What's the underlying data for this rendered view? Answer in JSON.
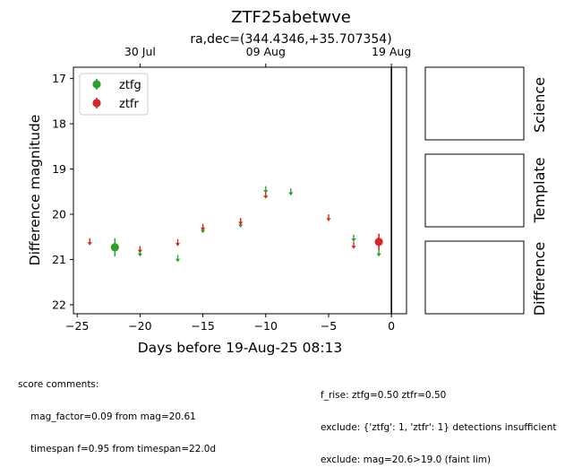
{
  "chart_data": {
    "type": "scatter",
    "title": "ZTF25abetwve",
    "subtitle": "ra,dec=(344.4346,+35.707354)",
    "xlabel": "Days before 19-Aug-25 08:13",
    "ylabel": "Difference magnitude",
    "xlim": [
      -25.3,
      1.2
    ],
    "ylim": [
      22.2,
      16.75
    ],
    "y_inverted": true,
    "xticks": [
      -25,
      -20,
      -15,
      -10,
      -5,
      0
    ],
    "xtick_labels": [
      "−25",
      "−20",
      "−15",
      "−10",
      "−5",
      "0"
    ],
    "yticks": [
      17,
      18,
      19,
      20,
      21,
      22
    ],
    "ytick_labels": [
      "17",
      "18",
      "19",
      "20",
      "21",
      "22"
    ],
    "top_axis": {
      "ticks": [
        -20,
        -10,
        0
      ],
      "labels": [
        "30 Jul",
        "09 Aug",
        "19 Aug"
      ]
    },
    "vline_x": 0,
    "grid": false,
    "legend": {
      "placement": "top-left"
    },
    "series": [
      {
        "name": "ztfg",
        "color": "#2ca02c",
        "detections": [
          {
            "x": -22,
            "y": 20.73,
            "err": 0.2
          }
        ],
        "upper_limits": [
          {
            "x": -20,
            "y": 20.85
          },
          {
            "x": -17,
            "y": 20.97
          },
          {
            "x": -15,
            "y": 20.33
          },
          {
            "x": -12,
            "y": 20.21
          },
          {
            "x": -10,
            "y": 19.45
          },
          {
            "x": -8,
            "y": 19.5
          },
          {
            "x": -3,
            "y": 20.52
          },
          {
            "x": -1,
            "y": 20.85
          }
        ]
      },
      {
        "name": "ztfr",
        "color": "#d62728",
        "detections": [
          {
            "x": -1,
            "y": 20.61,
            "err": 0.18
          }
        ],
        "upper_limits": [
          {
            "x": -24,
            "y": 20.6
          },
          {
            "x": -20,
            "y": 20.77
          },
          {
            "x": -17,
            "y": 20.62
          },
          {
            "x": -15,
            "y": 20.28
          },
          {
            "x": -12,
            "y": 20.15
          },
          {
            "x": -10,
            "y": 19.57
          },
          {
            "x": -5,
            "y": 20.07
          },
          {
            "x": -3,
            "y": 20.68
          }
        ]
      }
    ]
  },
  "panels": {
    "science": "Science",
    "template": "Template",
    "difference": "Difference"
  },
  "comments": {
    "header": "score comments:",
    "left": [
      "mag_factor=0.09 from mag=20.61",
      "timespan f=0.95 from timespan=22.0d"
    ],
    "right": [
      "f_rise: ztfg=0.50 ztfr=0.50",
      "exclude: {'ztfg': 1, 'ztfr': 1} detections insufficient",
      "exclude: mag=20.6>19.0 (faint lim)"
    ]
  }
}
